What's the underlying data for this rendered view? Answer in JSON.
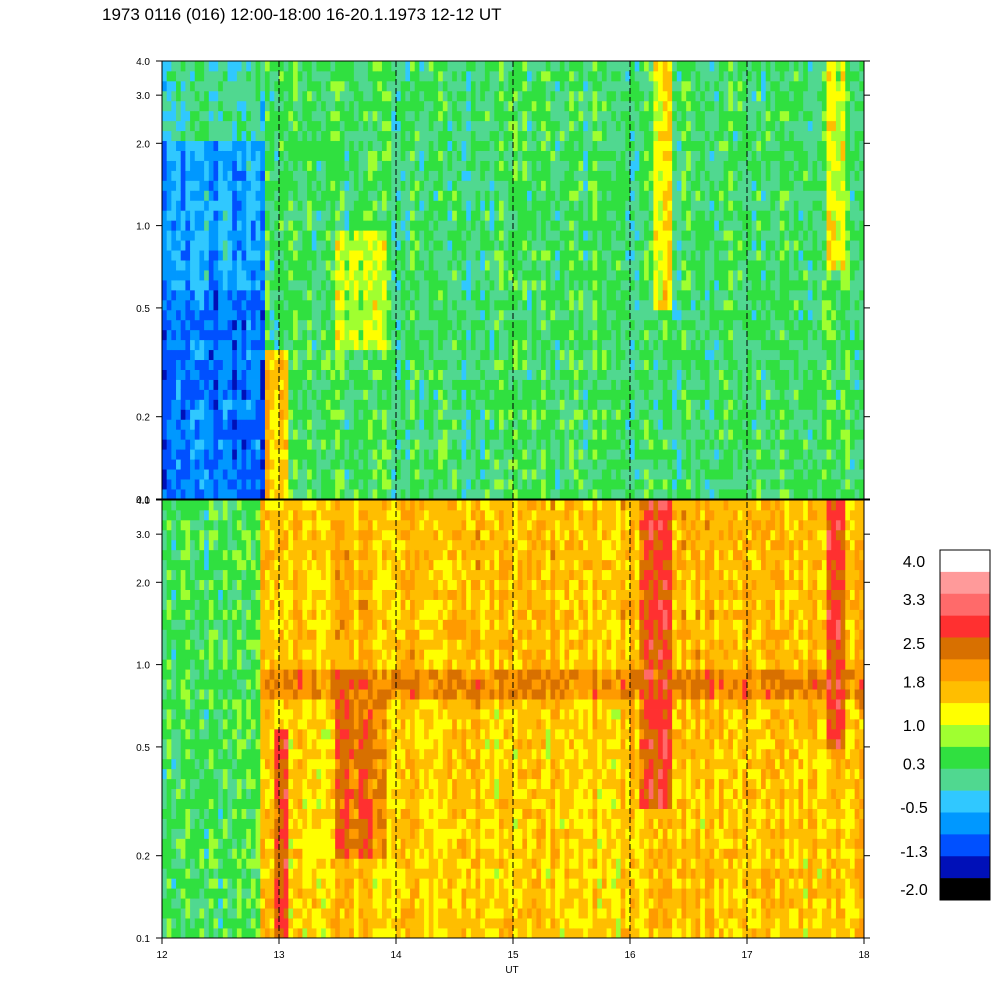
{
  "chart_data": {
    "type": "heatmap",
    "title": "1973 0116 (016) 12:00-18:00 16-20.1.1973  12-12 UT",
    "xlabel": "UT",
    "xlim": [
      12,
      18
    ],
    "x_ticks": [
      "12",
      "13",
      "14",
      "15",
      "16",
      "17",
      "18"
    ],
    "x_tick_values": [
      12,
      13,
      14,
      15,
      16,
      17,
      18
    ],
    "dashed_gridlines_x": [
      13,
      14,
      15,
      16,
      17
    ],
    "ylim": [
      0.1,
      4.0
    ],
    "yscale": "log",
    "y_ticks": [
      "4.0",
      "3.0",
      "2.0",
      "1.0",
      "0.5",
      "0.2",
      "0.1"
    ],
    "y_tick_values": [
      4.0,
      3.0,
      2.0,
      1.0,
      0.5,
      0.2,
      0.1
    ],
    "panels": [
      {
        "name": "upper",
        "background_level": 0.3,
        "regions": [
          {
            "x0": 12.0,
            "x1": 12.9,
            "y0": 0.1,
            "y1": 0.6,
            "level": -0.9
          },
          {
            "x0": 12.0,
            "x1": 12.9,
            "y0": 0.6,
            "y1": 2.0,
            "level": -0.6
          },
          {
            "x0": 12.0,
            "x1": 12.9,
            "y0": 2.0,
            "y1": 4.0,
            "level": 0.0
          },
          {
            "x0": 12.9,
            "x1": 13.1,
            "y0": 0.1,
            "y1": 0.35,
            "level": 1.5
          },
          {
            "x0": 13.1,
            "x1": 18.0,
            "y0": 0.1,
            "y1": 0.25,
            "level": 0.3
          },
          {
            "x0": 13.5,
            "x1": 13.9,
            "y0": 0.35,
            "y1": 1.0,
            "level": 0.9
          },
          {
            "x0": 16.2,
            "x1": 16.35,
            "y0": 0.5,
            "y1": 4.0,
            "level": 1.3
          },
          {
            "x0": 17.7,
            "x1": 17.85,
            "y0": 0.7,
            "y1": 4.0,
            "level": 1.1
          }
        ]
      },
      {
        "name": "lower",
        "background_level": 1.6,
        "regions": [
          {
            "x0": 12.0,
            "x1": 12.85,
            "y0": 0.1,
            "y1": 4.0,
            "level": 0.4
          },
          {
            "x0": 12.85,
            "x1": 18.0,
            "y0": 0.1,
            "y1": 0.7,
            "level": 1.5
          },
          {
            "x0": 12.85,
            "x1": 18.0,
            "y0": 0.75,
            "y1": 0.95,
            "level": 2.1
          },
          {
            "x0": 12.95,
            "x1": 13.1,
            "y0": 0.1,
            "y1": 0.6,
            "level": 2.6
          },
          {
            "x0": 13.5,
            "x1": 13.9,
            "y0": 0.2,
            "y1": 1.0,
            "level": 2.2
          },
          {
            "x0": 16.1,
            "x1": 16.35,
            "y0": 0.3,
            "y1": 4.0,
            "level": 2.5
          },
          {
            "x0": 17.7,
            "x1": 17.85,
            "y0": 0.5,
            "y1": 4.0,
            "level": 2.5
          }
        ]
      }
    ],
    "colorbar": {
      "levels": [
        4.0,
        3.3,
        2.5,
        1.8,
        1.0,
        0.3,
        -0.5,
        -1.3,
        -2.0
      ],
      "labels": [
        "4.0",
        "3.3",
        "2.5",
        "1.8",
        "1.0",
        "0.3",
        "-0.5",
        "-1.3",
        "-2.0"
      ],
      "colors": [
        "#ffffff",
        "#ff9a9a",
        "#ff6a6a",
        "#ff3030",
        "#d87000",
        "#ff9a00",
        "#ffbe00",
        "#ffff00",
        "#a0ff30",
        "#30e040",
        "#50d890",
        "#30c8ff",
        "#0098ff",
        "#0050ff",
        "#0010b8",
        "#000000"
      ]
    }
  }
}
